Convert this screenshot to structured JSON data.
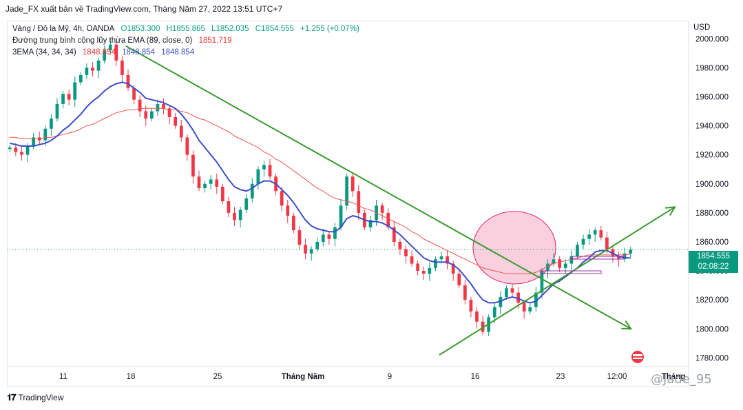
{
  "header": {
    "published_by": "Jade_FX xuất bản về TradingView.com, Tháng Năm 27, 2022 13:51 UTC+7"
  },
  "legend": {
    "symbol": "Vàng / Đô la Mỹ, 4h, OANDA",
    "open": "O1853.300",
    "high": "H1855.865",
    "low": "L1852.035",
    "close": "C1854.555",
    "change": "+1.255 (+0.07%)",
    "ema_label": "Đường trung bình cộng lũy thừa EMA (89, close, 0)",
    "ema_value": "1851.719",
    "ema3_label": "3EMA (34, 34, 34)",
    "ema3_v1": "1848.854",
    "ema3_v2": "1848.854",
    "ema3_v3": "1848.854"
  },
  "axis": {
    "currency": "USD",
    "price_now": "1854.555",
    "countdown": "02:08:22"
  },
  "footer": {
    "brand": "TradingView",
    "watermark": "@Jade_95"
  },
  "chart_data": {
    "type": "candlestick",
    "x_tick_labels": [
      "11",
      "18",
      "25",
      "Tháng Năm",
      "9",
      "16",
      "23",
      "12:00",
      "Tháng"
    ],
    "y_tick_labels": [
      "2000.000",
      "1980.000",
      "1960.000",
      "1940.000",
      "1920.000",
      "1900.000",
      "1880.000",
      "1860.000",
      "1840.000",
      "1820.000",
      "1800.000",
      "1780.000"
    ],
    "ylim": [
      1774,
      2012
    ],
    "current_price": 1854.555,
    "close_path": [
      1925,
      1922,
      1920,
      1926,
      1932,
      1930,
      1938,
      1945,
      1955,
      1962,
      1958,
      1970,
      1975,
      1980,
      1978,
      1985,
      1992,
      1996,
      1985,
      1975,
      1966,
      1958,
      1950,
      1945,
      1950,
      1955,
      1952,
      1946,
      1940,
      1932,
      1920,
      1905,
      1897,
      1900,
      1903,
      1898,
      1888,
      1880,
      1875,
      1882,
      1890,
      1900,
      1910,
      1913,
      1905,
      1895,
      1885,
      1878,
      1868,
      1858,
      1852,
      1855,
      1860,
      1865,
      1862,
      1870,
      1885,
      1905,
      1895,
      1880,
      1870,
      1875,
      1885,
      1880,
      1870,
      1860,
      1855,
      1850,
      1845,
      1840,
      1838,
      1842,
      1848,
      1850,
      1845,
      1838,
      1830,
      1820,
      1812,
      1805,
      1798,
      1808,
      1815,
      1822,
      1828,
      1825,
      1818,
      1812,
      1815,
      1825,
      1840,
      1845,
      1848,
      1842,
      1845,
      1850,
      1858,
      1862,
      1865,
      1868,
      1863,
      1855,
      1850,
      1848,
      1852,
      1854.555
    ],
    "ema89": [
      1932,
      1932,
      1931,
      1931,
      1931,
      1931,
      1932,
      1932,
      1933,
      1934,
      1935,
      1936,
      1938,
      1940,
      1941,
      1943,
      1945,
      1947,
      1949,
      1950,
      1951,
      1951,
      1952,
      1952,
      1952,
      1952,
      1952,
      1951,
      1951,
      1950,
      1949,
      1947,
      1945,
      1944,
      1942,
      1940,
      1938,
      1936,
      1933,
      1931,
      1929,
      1927,
      1925,
      1922,
      1920,
      1917,
      1915,
      1912,
      1909,
      1906,
      1903,
      1900,
      1897,
      1895,
      1892,
      1890,
      1889,
      1888,
      1887,
      1885,
      1883,
      1882,
      1880,
      1878,
      1876,
      1874,
      1872,
      1870,
      1867,
      1865,
      1862,
      1860,
      1858,
      1856,
      1854,
      1852,
      1850,
      1848,
      1846,
      1844,
      1842,
      1841,
      1840,
      1839,
      1838,
      1838,
      1838,
      1838,
      1838,
      1839,
      1841,
      1843,
      1845,
      1846,
      1847,
      1848,
      1849,
      1850,
      1851,
      1851,
      1851,
      1851,
      1851,
      1851,
      1851,
      1851.719
    ],
    "ema3": [
      1928,
      1927,
      1926,
      1926,
      1926,
      1927,
      1928,
      1930,
      1933,
      1937,
      1940,
      1944,
      1948,
      1953,
      1957,
      1960,
      1964,
      1967,
      1969,
      1970,
      1969,
      1966,
      1963,
      1959,
      1958,
      1957,
      1956,
      1954,
      1952,
      1948,
      1943,
      1937,
      1930,
      1925,
      1920,
      1915,
      1909,
      1903,
      1898,
      1896,
      1895,
      1897,
      1900,
      1902,
      1902,
      1900,
      1896,
      1892,
      1887,
      1881,
      1875,
      1871,
      1869,
      1868,
      1867,
      1867,
      1870,
      1876,
      1878,
      1877,
      1875,
      1874,
      1874,
      1873,
      1871,
      1868,
      1865,
      1861,
      1857,
      1853,
      1849,
      1847,
      1846,
      1846,
      1846,
      1844,
      1841,
      1836,
      1831,
      1825,
      1820,
      1818,
      1818,
      1819,
      1821,
      1822,
      1821,
      1819,
      1818,
      1819,
      1823,
      1827,
      1831,
      1833,
      1836,
      1839,
      1842,
      1846,
      1849,
      1853,
      1854,
      1854,
      1852,
      1850,
      1849,
      1848.854
    ],
    "trendlines": [
      {
        "name": "downtrend",
        "from": [
          0.19,
          1995
        ],
        "to": [
          0.93,
          1800
        ]
      },
      {
        "name": "uptrend",
        "from": [
          0.69,
          1782
        ],
        "to": [
          1.0,
          1884
        ]
      }
    ],
    "zone_ellipse": {
      "x_center": 0.81,
      "price_center": 1856,
      "x_radius": 0.066,
      "price_radius": 25
    },
    "colors": {
      "up": "#089981",
      "down": "#f23645",
      "ema89": "#ef5350",
      "ema3": "#3c4cc8",
      "trend": "#3a9a2f",
      "zone_fill": "#f8bbd0",
      "zone_stroke": "#e91e63"
    }
  }
}
